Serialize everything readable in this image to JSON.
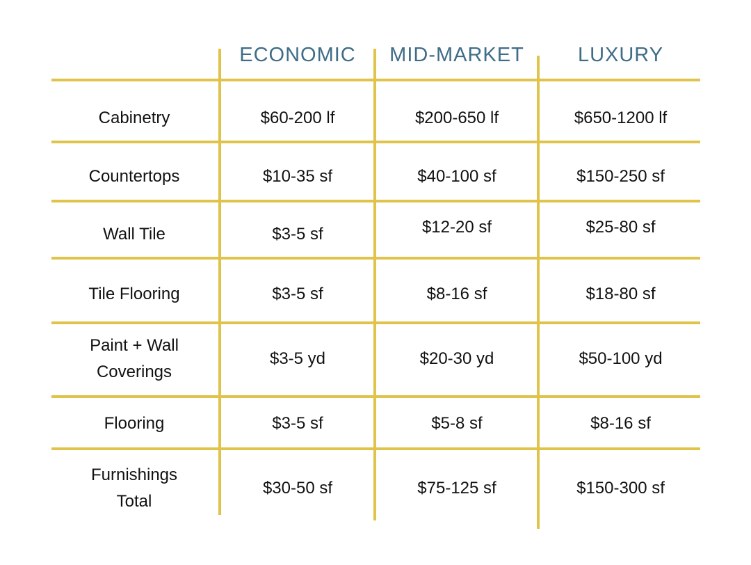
{
  "table": {
    "headers": [
      "ECONOMIC",
      "MID-MARKET",
      "LUXURY"
    ],
    "rows": [
      {
        "category": [
          "Cabinetry"
        ],
        "economic": "$60-200 lf",
        "mid_market": "$200-650 lf",
        "luxury": "$650-1200 lf"
      },
      {
        "category": [
          "Countertops"
        ],
        "economic": "$10-35 sf",
        "mid_market": "$40-100 sf",
        "luxury": "$150-250 sf"
      },
      {
        "category": [
          "Wall Tile"
        ],
        "economic": "$3-5 sf",
        "mid_market": "$12-20 sf",
        "luxury": "$25-80 sf"
      },
      {
        "category": [
          "Tile Flooring"
        ],
        "economic": "$3-5 sf",
        "mid_market": "$8-16 sf",
        "luxury": "$18-80 sf"
      },
      {
        "category": [
          "Paint + Wall",
          "Coverings"
        ],
        "economic": "$3-5 yd",
        "mid_market": "$20-30 yd",
        "luxury": "$50-100 yd"
      },
      {
        "category": [
          "Flooring"
        ],
        "economic": "$3-5 sf",
        "mid_market": "$5-8 sf",
        "luxury": "$8-16 sf"
      },
      {
        "category": [
          "Furnishings",
          "Total"
        ],
        "economic": "$30-50 sf",
        "mid_market": "$75-125 sf",
        "luxury": "$150-300 sf"
      }
    ]
  },
  "colors": {
    "grid_line": "#e0c34a",
    "header_text": "#3f6d87",
    "body_text": "#111111"
  }
}
